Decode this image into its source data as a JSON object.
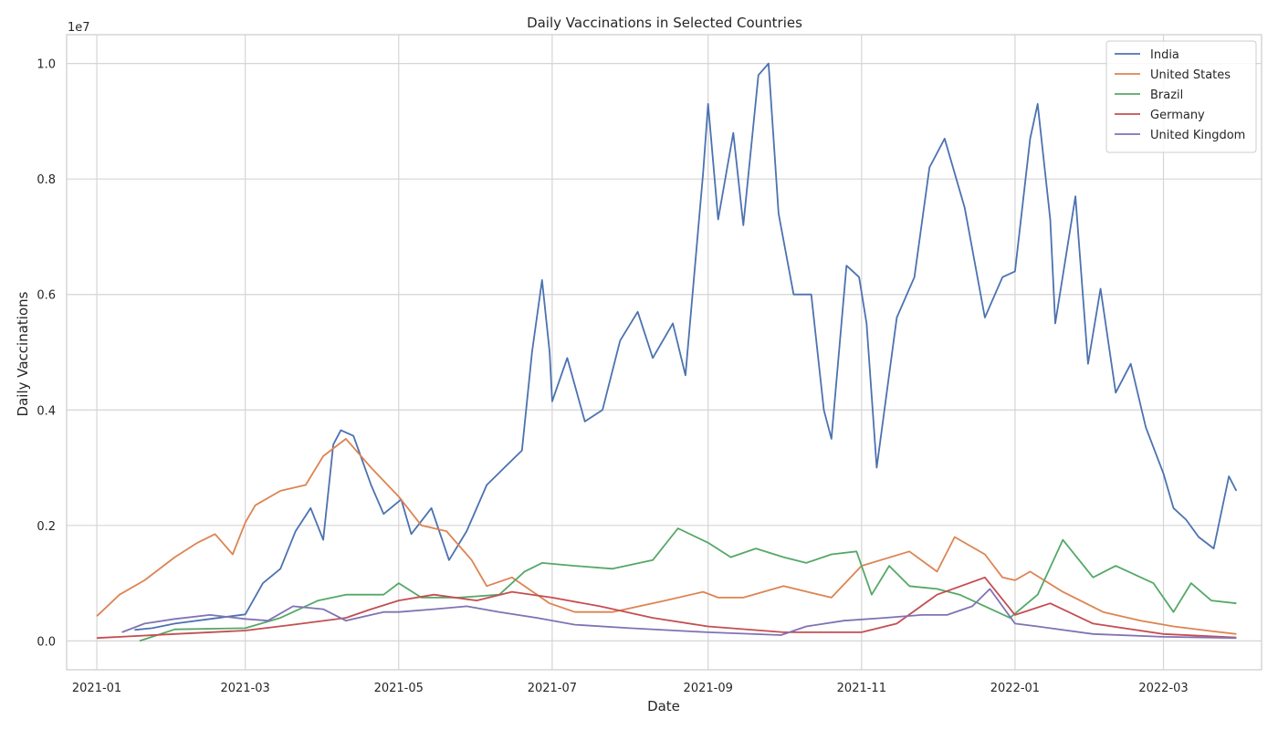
{
  "chart_data": {
    "type": "line",
    "title": "Daily Vaccinations in Selected Countries",
    "xlabel": "Date",
    "ylabel": "Daily Vaccinations",
    "y_offset_label": "1e7",
    "y_scale": 10000000,
    "xlim": [
      "2020-12-20",
      "2022-04-09"
    ],
    "ylim": [
      -500000,
      10500000
    ],
    "x_ticks": [
      {
        "date": "2021-01-01",
        "label": "2021-01"
      },
      {
        "date": "2021-03-01",
        "label": "2021-03"
      },
      {
        "date": "2021-05-01",
        "label": "2021-05"
      },
      {
        "date": "2021-07-01",
        "label": "2021-07"
      },
      {
        "date": "2021-09-01",
        "label": "2021-09"
      },
      {
        "date": "2021-11-01",
        "label": "2021-11"
      },
      {
        "date": "2022-01-01",
        "label": "2022-01"
      },
      {
        "date": "2022-03-01",
        "label": "2022-03"
      }
    ],
    "y_ticks": [
      {
        "value": 0,
        "label": "0.0"
      },
      {
        "value": 2000000,
        "label": "0.2"
      },
      {
        "value": 4000000,
        "label": "0.4"
      },
      {
        "value": 6000000,
        "label": "0.6"
      },
      {
        "value": 8000000,
        "label": "0.8"
      },
      {
        "value": 10000000,
        "label": "1.0"
      }
    ],
    "grid": true,
    "legend_position": "top-right",
    "series": [
      {
        "name": "India",
        "color": "#4c72b0",
        "points": [
          [
            "2021-01-16",
            190000
          ],
          [
            "2021-01-23",
            220000
          ],
          [
            "2021-02-01",
            300000
          ],
          [
            "2021-02-15",
            380000
          ],
          [
            "2021-03-01",
            460000
          ],
          [
            "2021-03-08",
            1000000
          ],
          [
            "2021-03-15",
            1250000
          ],
          [
            "2021-03-21",
            1900000
          ],
          [
            "2021-03-27",
            2300000
          ],
          [
            "2021-04-01",
            1750000
          ],
          [
            "2021-04-05",
            3400000
          ],
          [
            "2021-04-08",
            3650000
          ],
          [
            "2021-04-13",
            3550000
          ],
          [
            "2021-04-20",
            2700000
          ],
          [
            "2021-04-25",
            2200000
          ],
          [
            "2021-05-02",
            2450000
          ],
          [
            "2021-05-06",
            1850000
          ],
          [
            "2021-05-14",
            2300000
          ],
          [
            "2021-05-21",
            1400000
          ],
          [
            "2021-05-28",
            1900000
          ],
          [
            "2021-06-05",
            2700000
          ],
          [
            "2021-06-12",
            3000000
          ],
          [
            "2021-06-19",
            3300000
          ],
          [
            "2021-06-23",
            5000000
          ],
          [
            "2021-06-27",
            6250000
          ],
          [
            "2021-06-30",
            5000000
          ],
          [
            "2021-07-01",
            4150000
          ],
          [
            "2021-07-07",
            4900000
          ],
          [
            "2021-07-14",
            3800000
          ],
          [
            "2021-07-21",
            4000000
          ],
          [
            "2021-07-28",
            5200000
          ],
          [
            "2021-08-04",
            5700000
          ],
          [
            "2021-08-10",
            4900000
          ],
          [
            "2021-08-18",
            5500000
          ],
          [
            "2021-08-23",
            4600000
          ],
          [
            "2021-08-30",
            8100000
          ],
          [
            "2021-09-01",
            9300000
          ],
          [
            "2021-09-05",
            7300000
          ],
          [
            "2021-09-11",
            8800000
          ],
          [
            "2021-09-15",
            7200000
          ],
          [
            "2021-09-21",
            9800000
          ],
          [
            "2021-09-25",
            10000000
          ],
          [
            "2021-09-29",
            7400000
          ],
          [
            "2021-10-05",
            6000000
          ],
          [
            "2021-10-12",
            6000000
          ],
          [
            "2021-10-17",
            4000000
          ],
          [
            "2021-10-20",
            3500000
          ],
          [
            "2021-10-26",
            6500000
          ],
          [
            "2021-10-31",
            6300000
          ],
          [
            "2021-11-03",
            5500000
          ],
          [
            "2021-11-07",
            3000000
          ],
          [
            "2021-11-15",
            5600000
          ],
          [
            "2021-11-22",
            6300000
          ],
          [
            "2021-11-28",
            8200000
          ],
          [
            "2021-12-04",
            8700000
          ],
          [
            "2021-12-12",
            7500000
          ],
          [
            "2021-12-20",
            5600000
          ],
          [
            "2021-12-27",
            6300000
          ],
          [
            "2022-01-01",
            6400000
          ],
          [
            "2022-01-07",
            8700000
          ],
          [
            "2022-01-10",
            9300000
          ],
          [
            "2022-01-15",
            7300000
          ],
          [
            "2022-01-17",
            5500000
          ],
          [
            "2022-01-25",
            7700000
          ],
          [
            "2022-01-30",
            4800000
          ],
          [
            "2022-02-04",
            6100000
          ],
          [
            "2022-02-10",
            4300000
          ],
          [
            "2022-02-16",
            4800000
          ],
          [
            "2022-02-22",
            3700000
          ],
          [
            "2022-03-01",
            2900000
          ],
          [
            "2022-03-05",
            2300000
          ],
          [
            "2022-03-10",
            2100000
          ],
          [
            "2022-03-15",
            1800000
          ],
          [
            "2022-03-21",
            1600000
          ],
          [
            "2022-03-27",
            2850000
          ],
          [
            "2022-03-30",
            2600000
          ]
        ]
      },
      {
        "name": "United States",
        "color": "#dd8452",
        "points": [
          [
            "2021-01-01",
            430000
          ],
          [
            "2021-01-10",
            800000
          ],
          [
            "2021-01-20",
            1050000
          ],
          [
            "2021-02-01",
            1450000
          ],
          [
            "2021-02-10",
            1700000
          ],
          [
            "2021-02-17",
            1850000
          ],
          [
            "2021-02-24",
            1500000
          ],
          [
            "2021-03-01",
            2050000
          ],
          [
            "2021-03-05",
            2350000
          ],
          [
            "2021-03-15",
            2600000
          ],
          [
            "2021-03-25",
            2700000
          ],
          [
            "2021-04-01",
            3200000
          ],
          [
            "2021-04-10",
            3500000
          ],
          [
            "2021-04-20",
            3000000
          ],
          [
            "2021-05-01",
            2500000
          ],
          [
            "2021-05-10",
            2000000
          ],
          [
            "2021-05-20",
            1900000
          ],
          [
            "2021-05-30",
            1400000
          ],
          [
            "2021-06-05",
            950000
          ],
          [
            "2021-06-15",
            1100000
          ],
          [
            "2021-06-30",
            650000
          ],
          [
            "2021-07-10",
            500000
          ],
          [
            "2021-07-25",
            500000
          ],
          [
            "2021-08-15",
            700000
          ],
          [
            "2021-08-30",
            850000
          ],
          [
            "2021-09-05",
            750000
          ],
          [
            "2021-09-15",
            750000
          ],
          [
            "2021-10-01",
            950000
          ],
          [
            "2021-10-20",
            750000
          ],
          [
            "2021-11-01",
            1300000
          ],
          [
            "2021-11-20",
            1550000
          ],
          [
            "2021-12-01",
            1200000
          ],
          [
            "2021-12-08",
            1800000
          ],
          [
            "2021-12-20",
            1500000
          ],
          [
            "2021-12-27",
            1100000
          ],
          [
            "2022-01-01",
            1050000
          ],
          [
            "2022-01-07",
            1200000
          ],
          [
            "2022-01-20",
            850000
          ],
          [
            "2022-02-05",
            500000
          ],
          [
            "2022-02-20",
            350000
          ],
          [
            "2022-03-05",
            250000
          ],
          [
            "2022-03-20",
            170000
          ],
          [
            "2022-03-30",
            120000
          ]
        ]
      },
      {
        "name": "Brazil",
        "color": "#55a868",
        "points": [
          [
            "2021-01-18",
            0
          ],
          [
            "2021-02-01",
            200000
          ],
          [
            "2021-03-01",
            220000
          ],
          [
            "2021-03-15",
            400000
          ],
          [
            "2021-03-30",
            700000
          ],
          [
            "2021-04-10",
            800000
          ],
          [
            "2021-04-25",
            800000
          ],
          [
            "2021-05-01",
            1000000
          ],
          [
            "2021-05-10",
            750000
          ],
          [
            "2021-05-25",
            750000
          ],
          [
            "2021-06-10",
            800000
          ],
          [
            "2021-06-20",
            1200000
          ],
          [
            "2021-06-27",
            1350000
          ],
          [
            "2021-07-10",
            1300000
          ],
          [
            "2021-07-25",
            1250000
          ],
          [
            "2021-08-10",
            1400000
          ],
          [
            "2021-08-20",
            1950000
          ],
          [
            "2021-09-01",
            1700000
          ],
          [
            "2021-09-10",
            1450000
          ],
          [
            "2021-09-20",
            1600000
          ],
          [
            "2021-10-01",
            1450000
          ],
          [
            "2021-10-10",
            1350000
          ],
          [
            "2021-10-20",
            1500000
          ],
          [
            "2021-10-30",
            1550000
          ],
          [
            "2021-11-05",
            800000
          ],
          [
            "2021-11-12",
            1300000
          ],
          [
            "2021-11-20",
            950000
          ],
          [
            "2021-12-01",
            900000
          ],
          [
            "2021-12-10",
            800000
          ],
          [
            "2021-12-20",
            600000
          ],
          [
            "2021-12-30",
            400000
          ],
          [
            "2022-01-10",
            800000
          ],
          [
            "2022-01-20",
            1750000
          ],
          [
            "2022-02-01",
            1100000
          ],
          [
            "2022-02-10",
            1300000
          ],
          [
            "2022-02-25",
            1000000
          ],
          [
            "2022-03-05",
            500000
          ],
          [
            "2022-03-12",
            1000000
          ],
          [
            "2022-03-20",
            700000
          ],
          [
            "2022-03-30",
            650000
          ]
        ]
      },
      {
        "name": "Germany",
        "color": "#c44e52",
        "points": [
          [
            "2021-01-01",
            50000
          ],
          [
            "2021-02-01",
            120000
          ],
          [
            "2021-03-01",
            180000
          ],
          [
            "2021-03-20",
            280000
          ],
          [
            "2021-04-10",
            400000
          ],
          [
            "2021-04-20",
            550000
          ],
          [
            "2021-05-01",
            700000
          ],
          [
            "2021-05-15",
            800000
          ],
          [
            "2021-06-01",
            700000
          ],
          [
            "2021-06-15",
            850000
          ],
          [
            "2021-07-01",
            750000
          ],
          [
            "2021-07-20",
            600000
          ],
          [
            "2021-08-10",
            400000
          ],
          [
            "2021-09-01",
            250000
          ],
          [
            "2021-10-01",
            150000
          ],
          [
            "2021-11-01",
            150000
          ],
          [
            "2021-11-15",
            300000
          ],
          [
            "2021-12-01",
            800000
          ],
          [
            "2021-12-20",
            1100000
          ],
          [
            "2022-01-01",
            450000
          ],
          [
            "2022-01-15",
            650000
          ],
          [
            "2022-02-01",
            300000
          ],
          [
            "2022-03-01",
            120000
          ],
          [
            "2022-03-30",
            60000
          ]
        ]
      },
      {
        "name": "United Kingdom",
        "color": "#8172b3",
        "points": [
          [
            "2021-01-11",
            150000
          ],
          [
            "2021-01-20",
            300000
          ],
          [
            "2021-02-01",
            380000
          ],
          [
            "2021-02-15",
            450000
          ],
          [
            "2021-03-01",
            380000
          ],
          [
            "2021-03-10",
            350000
          ],
          [
            "2021-03-20",
            600000
          ],
          [
            "2021-04-01",
            550000
          ],
          [
            "2021-04-10",
            350000
          ],
          [
            "2021-04-25",
            500000
          ],
          [
            "2021-05-01",
            500000
          ],
          [
            "2021-05-15",
            550000
          ],
          [
            "2021-05-28",
            600000
          ],
          [
            "2021-06-10",
            500000
          ],
          [
            "2021-06-25",
            400000
          ],
          [
            "2021-07-10",
            280000
          ],
          [
            "2021-08-01",
            220000
          ],
          [
            "2021-09-01",
            150000
          ],
          [
            "2021-09-30",
            100000
          ],
          [
            "2021-10-10",
            250000
          ],
          [
            "2021-10-25",
            350000
          ],
          [
            "2021-11-10",
            400000
          ],
          [
            "2021-11-25",
            450000
          ],
          [
            "2021-12-05",
            450000
          ],
          [
            "2021-12-15",
            600000
          ],
          [
            "2021-12-22",
            900000
          ],
          [
            "2022-01-01",
            300000
          ],
          [
            "2022-01-10",
            250000
          ],
          [
            "2022-02-01",
            120000
          ],
          [
            "2022-03-01",
            70000
          ],
          [
            "2022-03-30",
            50000
          ]
        ]
      }
    ]
  }
}
